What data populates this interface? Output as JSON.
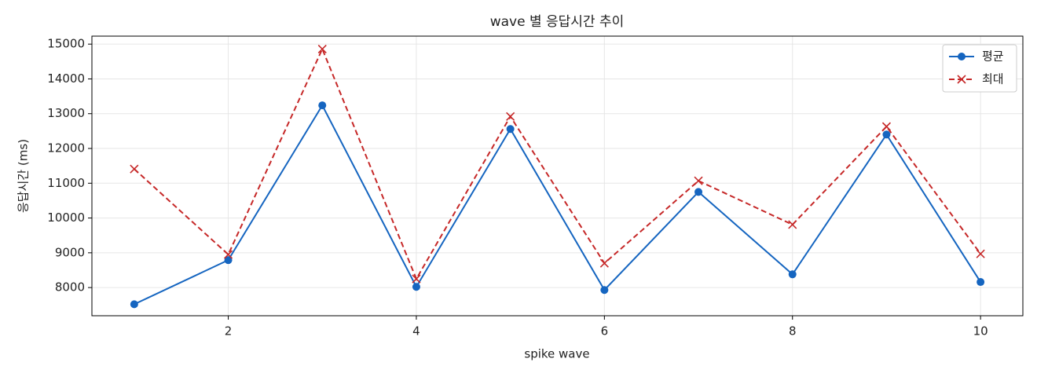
{
  "chart_data": {
    "type": "line",
    "title": "wave 별 응답시간 추이",
    "x_label": "spike wave",
    "y_label": "응답시간 (ms)",
    "x": [
      1,
      2,
      3,
      4,
      5,
      6,
      7,
      8,
      9,
      10
    ],
    "series": [
      {
        "name": "평균",
        "color": "#1565c0",
        "marker": "circle",
        "dash": "solid",
        "values": [
          7520,
          8790,
          13240,
          8020,
          12560,
          7930,
          10750,
          8380,
          12400,
          8160
        ]
      },
      {
        "name": "최대",
        "color": "#c62828",
        "marker": "x",
        "dash": "dashed",
        "values": [
          11410,
          8950,
          14860,
          8250,
          12920,
          8700,
          11070,
          9810,
          12630,
          8970
        ]
      }
    ],
    "xlim": [
      0.55,
      10.45
    ],
    "xticks": [
      2,
      4,
      6,
      8,
      10
    ],
    "ylim": [
      7190,
      15230
    ],
    "yticks": [
      8000,
      9000,
      10000,
      11000,
      12000,
      13000,
      14000,
      15000
    ],
    "grid": true,
    "legend": "upper right"
  }
}
